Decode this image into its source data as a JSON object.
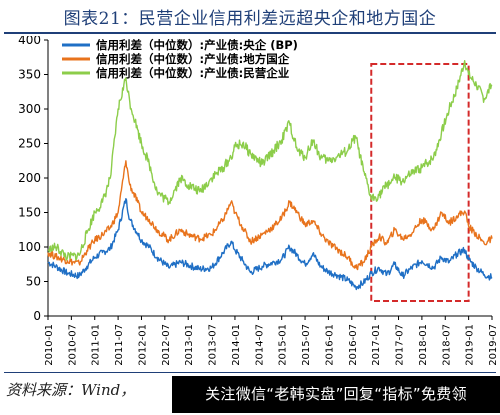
{
  "figure_title": "图表21：民营企业信用利差远超央企和地方国企",
  "source_text": "资料来源：Wind，",
  "watermark_text": "关注微信“老韩实盘”回复“指标”免费领",
  "colors": {
    "central_soe": "#1f6fc5",
    "local_soe": "#e8731c",
    "private": "#8ccd4a",
    "highlight_box": "#d42a2a"
  },
  "chart_data": {
    "type": "line",
    "title": "图表21：民营企业信用利差远超央企和地方国企",
    "xlabel": "",
    "ylabel": "",
    "ylim": [
      0,
      400
    ],
    "yticks": [
      0,
      50,
      100,
      150,
      200,
      250,
      300,
      350,
      400
    ],
    "xticks": [
      "2010-01",
      "2010-07",
      "2011-01",
      "2011-07",
      "2012-01",
      "2012-07",
      "2013-01",
      "2013-07",
      "2014-01",
      "2014-07",
      "2015-01",
      "2015-07",
      "2016-01",
      "2016-07",
      "2017-01",
      "2017-07",
      "2018-01",
      "2018-07",
      "2019-01",
      "2019-07"
    ],
    "grid": false,
    "legend_position": "top-left",
    "annotation": "dashed red box highlighting 2016-12 to 2019-01",
    "highlight_range": [
      "2016-12",
      "2019-01"
    ],
    "series": [
      {
        "name": "信用利差（中位数）:产业债:央企 (BP)",
        "color": "#1f6fc5",
        "points": [
          [
            "2010-01",
            78
          ],
          [
            "2010-03",
            72
          ],
          [
            "2010-06",
            62
          ],
          [
            "2010-09",
            58
          ],
          [
            "2010-11",
            72
          ],
          [
            "2011-01",
            85
          ],
          [
            "2011-03",
            92
          ],
          [
            "2011-05",
            98
          ],
          [
            "2011-07",
            125
          ],
          [
            "2011-09",
            170
          ],
          [
            "2011-10",
            140
          ],
          [
            "2011-12",
            120
          ],
          [
            "2012-01",
            110
          ],
          [
            "2012-03",
            100
          ],
          [
            "2012-05",
            85
          ],
          [
            "2012-08",
            70
          ],
          [
            "2012-11",
            78
          ],
          [
            "2013-01",
            74
          ],
          [
            "2013-04",
            68
          ],
          [
            "2013-07",
            70
          ],
          [
            "2013-10",
            92
          ],
          [
            "2013-12",
            108
          ],
          [
            "2014-01",
            96
          ],
          [
            "2014-03",
            80
          ],
          [
            "2014-05",
            63
          ],
          [
            "2014-08",
            72
          ],
          [
            "2014-11",
            78
          ],
          [
            "2015-01",
            82
          ],
          [
            "2015-03",
            100
          ],
          [
            "2015-05",
            88
          ],
          [
            "2015-07",
            75
          ],
          [
            "2015-09",
            90
          ],
          [
            "2015-11",
            72
          ],
          [
            "2016-01",
            64
          ],
          [
            "2016-03",
            60
          ],
          [
            "2016-06",
            52
          ],
          [
            "2016-08",
            42
          ],
          [
            "2016-10",
            48
          ],
          [
            "2016-12",
            62
          ],
          [
            "2017-02",
            70
          ],
          [
            "2017-04",
            60
          ],
          [
            "2017-06",
            75
          ],
          [
            "2017-08",
            58
          ],
          [
            "2017-10",
            68
          ],
          [
            "2018-01",
            80
          ],
          [
            "2018-04",
            70
          ],
          [
            "2018-06",
            85
          ],
          [
            "2018-08",
            78
          ],
          [
            "2018-10",
            90
          ],
          [
            "2018-12",
            96
          ],
          [
            "2019-01",
            82
          ],
          [
            "2019-03",
            70
          ],
          [
            "2019-05",
            60
          ],
          [
            "2019-07",
            56
          ]
        ]
      },
      {
        "name": "信用利差（中位数）:产业债:地方国企",
        "color": "#e8731c",
        "points": [
          [
            "2010-01",
            92
          ],
          [
            "2010-03",
            86
          ],
          [
            "2010-06",
            80
          ],
          [
            "2010-09",
            76
          ],
          [
            "2010-11",
            95
          ],
          [
            "2011-01",
            110
          ],
          [
            "2011-03",
            118
          ],
          [
            "2011-05",
            128
          ],
          [
            "2011-07",
            150
          ],
          [
            "2011-09",
            225
          ],
          [
            "2011-10",
            190
          ],
          [
            "2011-12",
            165
          ],
          [
            "2012-01",
            150
          ],
          [
            "2012-03",
            140
          ],
          [
            "2012-05",
            125
          ],
          [
            "2012-08",
            110
          ],
          [
            "2012-11",
            125
          ],
          [
            "2013-01",
            118
          ],
          [
            "2013-04",
            112
          ],
          [
            "2013-07",
            118
          ],
          [
            "2013-10",
            140
          ],
          [
            "2013-12",
            165
          ],
          [
            "2014-01",
            150
          ],
          [
            "2014-03",
            128
          ],
          [
            "2014-05",
            108
          ],
          [
            "2014-08",
            118
          ],
          [
            "2014-11",
            130
          ],
          [
            "2015-01",
            142
          ],
          [
            "2015-03",
            165
          ],
          [
            "2015-05",
            150
          ],
          [
            "2015-07",
            132
          ],
          [
            "2015-09",
            138
          ],
          [
            "2015-11",
            120
          ],
          [
            "2016-01",
            106
          ],
          [
            "2016-03",
            98
          ],
          [
            "2016-06",
            85
          ],
          [
            "2016-08",
            70
          ],
          [
            "2016-10",
            78
          ],
          [
            "2016-12",
            100
          ],
          [
            "2017-02",
            115
          ],
          [
            "2017-04",
            105
          ],
          [
            "2017-06",
            125
          ],
          [
            "2017-08",
            112
          ],
          [
            "2017-10",
            118
          ],
          [
            "2018-01",
            140
          ],
          [
            "2018-04",
            125
          ],
          [
            "2018-06",
            150
          ],
          [
            "2018-08",
            135
          ],
          [
            "2018-10",
            145
          ],
          [
            "2018-12",
            152
          ],
          [
            "2019-01",
            130
          ],
          [
            "2019-03",
            118
          ],
          [
            "2019-05",
            105
          ],
          [
            "2019-07",
            112
          ]
        ]
      },
      {
        "name": "信用利差（中位数）:产业债:民营企业",
        "color": "#8ccd4a",
        "points": [
          [
            "2010-01",
            95
          ],
          [
            "2010-03",
            100
          ],
          [
            "2010-06",
            85
          ],
          [
            "2010-09",
            88
          ],
          [
            "2010-11",
            120
          ],
          [
            "2011-01",
            150
          ],
          [
            "2011-03",
            165
          ],
          [
            "2011-05",
            200
          ],
          [
            "2011-07",
            300
          ],
          [
            "2011-09",
            345
          ],
          [
            "2011-10",
            310
          ],
          [
            "2011-12",
            270
          ],
          [
            "2012-01",
            250
          ],
          [
            "2012-03",
            220
          ],
          [
            "2012-05",
            180
          ],
          [
            "2012-08",
            165
          ],
          [
            "2012-11",
            200
          ],
          [
            "2013-01",
            190
          ],
          [
            "2013-04",
            180
          ],
          [
            "2013-07",
            200
          ],
          [
            "2013-10",
            215
          ],
          [
            "2013-12",
            230
          ],
          [
            "2014-01",
            245
          ],
          [
            "2014-03",
            250
          ],
          [
            "2014-05",
            235
          ],
          [
            "2014-08",
            220
          ],
          [
            "2014-11",
            240
          ],
          [
            "2015-01",
            255
          ],
          [
            "2015-03",
            280
          ],
          [
            "2015-05",
            240
          ],
          [
            "2015-07",
            230
          ],
          [
            "2015-09",
            255
          ],
          [
            "2015-11",
            230
          ],
          [
            "2016-01",
            225
          ],
          [
            "2016-03",
            230
          ],
          [
            "2016-06",
            240
          ],
          [
            "2016-08",
            260
          ],
          [
            "2016-10",
            210
          ],
          [
            "2016-12",
            170
          ],
          [
            "2017-02",
            175
          ],
          [
            "2017-04",
            190
          ],
          [
            "2017-06",
            200
          ],
          [
            "2017-08",
            195
          ],
          [
            "2017-10",
            205
          ],
          [
            "2018-01",
            215
          ],
          [
            "2018-04",
            230
          ],
          [
            "2018-06",
            265
          ],
          [
            "2018-08",
            300
          ],
          [
            "2018-10",
            330
          ],
          [
            "2018-12",
            370
          ],
          [
            "2019-01",
            350
          ],
          [
            "2019-03",
            335
          ],
          [
            "2019-05",
            315
          ],
          [
            "2019-07",
            335
          ]
        ]
      }
    ]
  }
}
